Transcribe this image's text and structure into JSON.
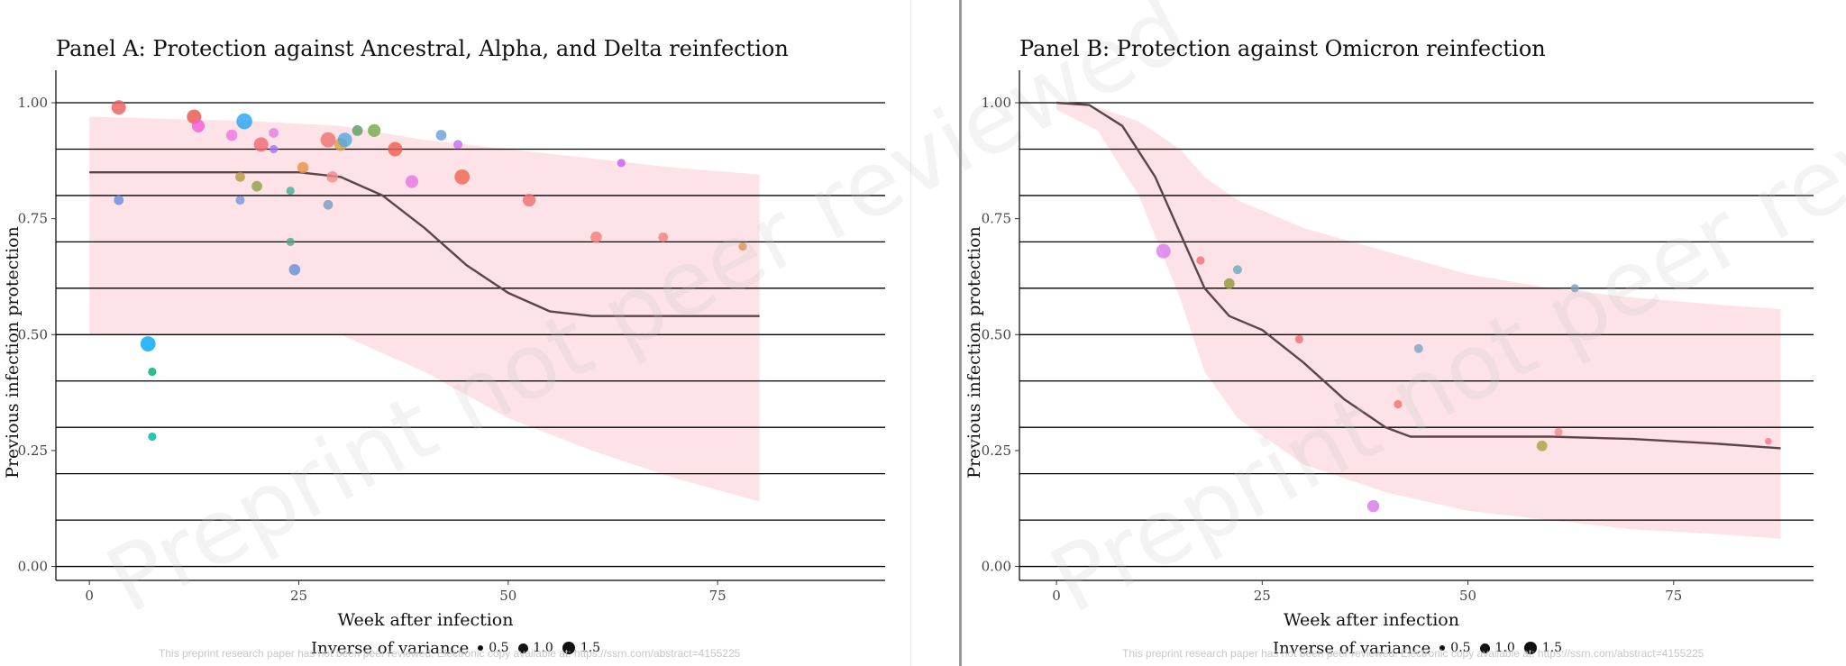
{
  "watermark": "Preprint not peer reviewed",
  "footnote": "This preprint research paper has not been peer reviewed. Electronic copy available at: https://ssrn.com/abstract=4155225",
  "legend": {
    "title": "Inverse of variance",
    "keys": [
      "0.5",
      "1.0",
      "1.5"
    ]
  },
  "colors": {
    "ribbon": "#fde3e7",
    "curve": "#5a4549",
    "gridline": "#000000"
  },
  "chart_data": [
    {
      "type": "scatter",
      "title": "Panel A: Protection against Ancestral, Alpha, and Delta reinfection",
      "xlabel": "Week after infection",
      "ylabel": "Previous infection protection",
      "xlim": [
        -4,
        95
      ],
      "ylim": [
        -0.03,
        1.07
      ],
      "xticks": [
        "0",
        "25",
        "50",
        "75"
      ],
      "xtick_values": [
        0,
        25,
        50,
        75
      ],
      "yticks": [
        "0.00",
        "0.25",
        "0.50",
        "0.75",
        "1.00"
      ],
      "ytick_values": [
        0.0,
        0.25,
        0.5,
        0.75,
        1.0
      ],
      "gridlines": [
        0.0,
        0.1,
        0.2,
        0.3,
        0.4,
        0.5,
        0.6,
        0.7,
        0.8,
        0.9,
        1.0
      ],
      "fit_curve": [
        [
          0,
          0.85
        ],
        [
          10,
          0.85
        ],
        [
          20,
          0.85
        ],
        [
          25,
          0.85
        ],
        [
          30,
          0.84
        ],
        [
          35,
          0.8
        ],
        [
          40,
          0.73
        ],
        [
          45,
          0.65
        ],
        [
          50,
          0.59
        ],
        [
          55,
          0.55
        ],
        [
          60,
          0.54
        ],
        [
          70,
          0.54
        ],
        [
          80,
          0.54
        ]
      ],
      "ribbon": [
        [
          0,
          0.97,
          0.5
        ],
        [
          20,
          0.96,
          0.5
        ],
        [
          30,
          0.95,
          0.5
        ],
        [
          40,
          0.92,
          0.42
        ],
        [
          50,
          0.9,
          0.32
        ],
        [
          60,
          0.88,
          0.25
        ],
        [
          70,
          0.86,
          0.19
        ],
        [
          80,
          0.845,
          0.14
        ]
      ],
      "points": [
        {
          "x": 3.5,
          "y": 0.99,
          "s": 1.3,
          "c": "#ec5f60"
        },
        {
          "x": 3.5,
          "y": 0.79,
          "s": 0.7,
          "c": "#6d8ddc"
        },
        {
          "x": 7,
          "y": 0.48,
          "s": 1.4,
          "c": "#00a9f4"
        },
        {
          "x": 7.5,
          "y": 0.42,
          "s": 0.5,
          "c": "#00ad76"
        },
        {
          "x": 7.5,
          "y": 0.28,
          "s": 0.5,
          "c": "#00b7a5"
        },
        {
          "x": 12.5,
          "y": 0.97,
          "s": 1.3,
          "c": "#e8584e"
        },
        {
          "x": 13,
          "y": 0.95,
          "s": 1.1,
          "c": "#f05fd8"
        },
        {
          "x": 17,
          "y": 0.93,
          "s": 0.9,
          "c": "#f075e0"
        },
        {
          "x": 18,
          "y": 0.84,
          "s": 0.7,
          "c": "#b49a45"
        },
        {
          "x": 18,
          "y": 0.79,
          "s": 0.6,
          "c": "#7b95d9"
        },
        {
          "x": 18.5,
          "y": 0.96,
          "s": 1.5,
          "c": "#26a6f0"
        },
        {
          "x": 20,
          "y": 0.82,
          "s": 0.8,
          "c": "#8ea24b"
        },
        {
          "x": 20.5,
          "y": 0.91,
          "s": 1.3,
          "c": "#ee6a74"
        },
        {
          "x": 22,
          "y": 0.935,
          "s": 0.7,
          "c": "#e57ee6"
        },
        {
          "x": 22,
          "y": 0.9,
          "s": 0.5,
          "c": "#a974f0"
        },
        {
          "x": 24,
          "y": 0.81,
          "s": 0.5,
          "c": "#4ca89b"
        },
        {
          "x": 24,
          "y": 0.7,
          "s": 0.5,
          "c": "#57a58a"
        },
        {
          "x": 24.5,
          "y": 0.64,
          "s": 0.9,
          "c": "#6890d8"
        },
        {
          "x": 25.5,
          "y": 0.86,
          "s": 0.9,
          "c": "#e79248"
        },
        {
          "x": 28.5,
          "y": 0.92,
          "s": 1.4,
          "c": "#ef7470"
        },
        {
          "x": 28.5,
          "y": 0.78,
          "s": 0.7,
          "c": "#74a1c3"
        },
        {
          "x": 29,
          "y": 0.84,
          "s": 0.9,
          "c": "#f28b8b"
        },
        {
          "x": 30,
          "y": 0.91,
          "s": 1.1,
          "c": "#d9a23e"
        },
        {
          "x": 30.5,
          "y": 0.92,
          "s": 1.3,
          "c": "#56a8e0"
        },
        {
          "x": 32,
          "y": 0.94,
          "s": 0.8,
          "c": "#5a9e62"
        },
        {
          "x": 34,
          "y": 0.94,
          "s": 1.1,
          "c": "#74aa4d"
        },
        {
          "x": 36.5,
          "y": 0.9,
          "s": 1.3,
          "c": "#ec6150"
        },
        {
          "x": 38.5,
          "y": 0.83,
          "s": 1.1,
          "c": "#e878e2"
        },
        {
          "x": 42,
          "y": 0.93,
          "s": 0.8,
          "c": "#6d9fdc"
        },
        {
          "x": 44,
          "y": 0.91,
          "s": 0.6,
          "c": "#c56ff0"
        },
        {
          "x": 44.5,
          "y": 0.84,
          "s": 1.4,
          "c": "#ee6754"
        },
        {
          "x": 52.5,
          "y": 0.79,
          "s": 1.1,
          "c": "#f27072"
        },
        {
          "x": 60.5,
          "y": 0.71,
          "s": 0.9,
          "c": "#f47f7a"
        },
        {
          "x": 63.5,
          "y": 0.87,
          "s": 0.5,
          "c": "#c661ea"
        },
        {
          "x": 68.5,
          "y": 0.71,
          "s": 0.7,
          "c": "#f0857e"
        },
        {
          "x": 78,
          "y": 0.69,
          "s": 0.5,
          "c": "#e68d47"
        }
      ]
    },
    {
      "type": "scatter",
      "title": "Panel B: Protection against Omicron reinfection",
      "xlabel": "Week after infection",
      "ylabel": "Previous infection protection",
      "xlim": [
        -4.5,
        92
      ],
      "ylim": [
        -0.03,
        1.07
      ],
      "xticks": [
        "0",
        "25",
        "50",
        "75"
      ],
      "xtick_values": [
        0,
        25,
        50,
        75
      ],
      "yticks": [
        "0.00",
        "0.25",
        "0.50",
        "0.75",
        "1.00"
      ],
      "ytick_values": [
        0.0,
        0.25,
        0.5,
        0.75,
        1.0
      ],
      "gridlines": [
        0.0,
        0.1,
        0.2,
        0.3,
        0.4,
        0.5,
        0.6,
        0.7,
        0.8,
        0.9,
        1.0
      ],
      "fit_curve": [
        [
          0,
          1.0
        ],
        [
          4,
          0.995
        ],
        [
          8,
          0.95
        ],
        [
          12,
          0.84
        ],
        [
          15,
          0.72
        ],
        [
          18,
          0.6
        ],
        [
          21,
          0.54
        ],
        [
          25,
          0.51
        ],
        [
          30,
          0.44
        ],
        [
          35,
          0.36
        ],
        [
          40,
          0.3
        ],
        [
          43,
          0.28
        ],
        [
          50,
          0.28
        ],
        [
          60,
          0.28
        ],
        [
          70,
          0.275
        ],
        [
          80,
          0.265
        ],
        [
          88,
          0.255
        ]
      ],
      "ribbon": [
        [
          0,
          1.0,
          0.985
        ],
        [
          5,
          0.99,
          0.94
        ],
        [
          10,
          0.96,
          0.8
        ],
        [
          15,
          0.9,
          0.58
        ],
        [
          18,
          0.84,
          0.42
        ],
        [
          22,
          0.79,
          0.32
        ],
        [
          30,
          0.73,
          0.22
        ],
        [
          40,
          0.68,
          0.16
        ],
        [
          50,
          0.63,
          0.12
        ],
        [
          60,
          0.6,
          0.1
        ],
        [
          70,
          0.58,
          0.08
        ],
        [
          80,
          0.565,
          0.07
        ],
        [
          88,
          0.555,
          0.06
        ]
      ],
      "points": [
        {
          "x": 13,
          "y": 0.68,
          "s": 1.3,
          "c": "#d97fef"
        },
        {
          "x": 17.5,
          "y": 0.66,
          "s": 0.5,
          "c": "#f07272"
        },
        {
          "x": 21,
          "y": 0.61,
          "s": 0.8,
          "c": "#8e9b36"
        },
        {
          "x": 22,
          "y": 0.64,
          "s": 0.6,
          "c": "#6aabc2"
        },
        {
          "x": 29.5,
          "y": 0.49,
          "s": 0.5,
          "c": "#f36f6f"
        },
        {
          "x": 38.5,
          "y": 0.13,
          "s": 1.0,
          "c": "#d879e9"
        },
        {
          "x": 41.5,
          "y": 0.35,
          "s": 0.5,
          "c": "#f2716c"
        },
        {
          "x": 44,
          "y": 0.47,
          "s": 0.6,
          "c": "#83a3c9"
        },
        {
          "x": 59,
          "y": 0.26,
          "s": 0.8,
          "c": "#a7a63f"
        },
        {
          "x": 61,
          "y": 0.29,
          "s": 0.5,
          "c": "#f28a8d"
        },
        {
          "x": 63,
          "y": 0.6,
          "s": 0.5,
          "c": "#7a9ec4"
        },
        {
          "x": 86.5,
          "y": 0.27,
          "s": 0.3,
          "c": "#f27b8a"
        }
      ]
    }
  ]
}
